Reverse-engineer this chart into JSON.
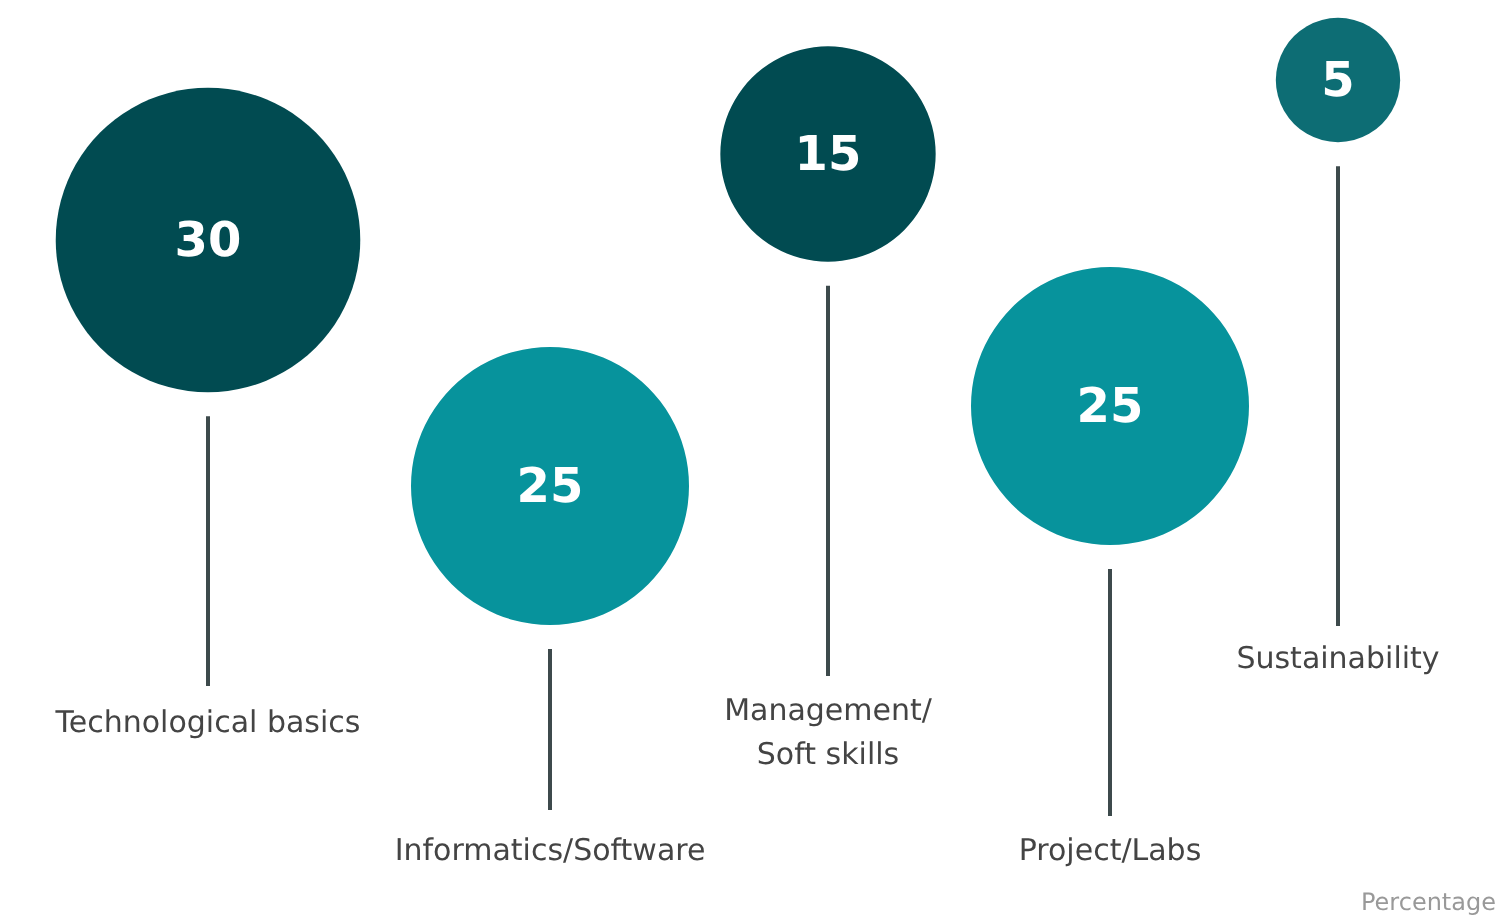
{
  "chart_data": {
    "type": "other",
    "categories": [
      "Technological basics",
      "Informatics/Software",
      "Management/Soft skills",
      "Project/Labs",
      "Sustainability"
    ],
    "values": [
      30,
      25,
      15,
      25,
      5
    ],
    "colors": [
      "#014b51",
      "#07939c",
      "#014b51",
      "#07939c",
      "#0d6d74"
    ],
    "data_labels": true,
    "annotations": [
      "Percentage"
    ]
  }
}
